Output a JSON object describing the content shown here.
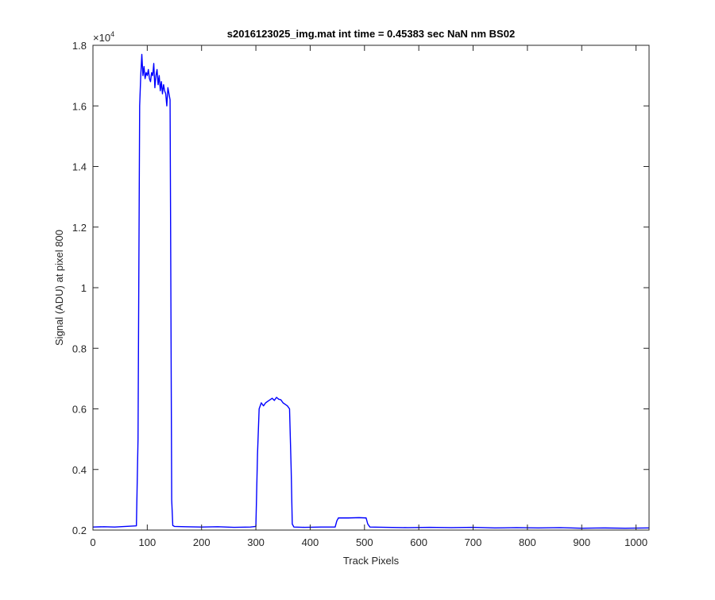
{
  "chart_data": {
    "type": "line",
    "title": "s2016123025_img.mat int time = 0.45383 sec  NaN nm BS02",
    "xlabel": "Track Pixels",
    "ylabel": "Signal (ADU) at pixel 800",
    "y_exponent_base": "×10",
    "y_exponent_power": "4",
    "xlim": [
      0,
      1024
    ],
    "ylim": [
      0.2,
      1.8
    ],
    "x_ticks": [
      0,
      100,
      200,
      300,
      400,
      500,
      600,
      700,
      800,
      900,
      1000
    ],
    "x_tick_labels": [
      "0",
      "100",
      "200",
      "300",
      "400",
      "500",
      "600",
      "700",
      "800",
      "900",
      "1000"
    ],
    "y_ticks": [
      0.2,
      0.4,
      0.6,
      0.8,
      1.0,
      1.2,
      1.4,
      1.6,
      1.8
    ],
    "y_tick_labels": [
      "0.2",
      "0.4",
      "0.6",
      "0.8",
      "1",
      "1.2",
      "1.4",
      "1.6",
      "1.8"
    ],
    "grid": false,
    "line_color": "#0000ff",
    "series": [
      {
        "x": [
          0,
          20,
          40,
          60,
          80,
          83,
          86,
          88,
          90,
          92,
          94,
          96,
          98,
          100,
          102,
          104,
          106,
          108,
          110,
          112,
          114,
          116,
          118,
          120,
          122,
          124,
          126,
          128,
          130,
          132,
          134,
          136,
          138,
          140,
          142,
          143,
          145,
          147,
          150,
          170,
          200,
          230,
          260,
          290,
          300,
          303,
          306,
          310,
          314,
          318,
          322,
          326,
          330,
          334,
          338,
          342,
          346,
          350,
          354,
          358,
          362,
          365,
          367,
          370,
          390,
          420,
          446,
          449,
          452,
          470,
          490,
          503,
          506,
          510,
          540,
          580,
          620,
          660,
          700,
          740,
          780,
          820,
          860,
          900,
          940,
          980,
          1024
        ],
        "y": [
          0.21,
          0.211,
          0.21,
          0.212,
          0.214,
          0.5,
          1.6,
          1.7,
          1.77,
          1.7,
          1.73,
          1.69,
          1.71,
          1.7,
          1.72,
          1.69,
          1.68,
          1.71,
          1.7,
          1.74,
          1.66,
          1.7,
          1.72,
          1.67,
          1.7,
          1.65,
          1.68,
          1.64,
          1.67,
          1.65,
          1.64,
          1.6,
          1.66,
          1.64,
          1.62,
          1.2,
          0.3,
          0.215,
          0.212,
          0.211,
          0.21,
          0.211,
          0.209,
          0.21,
          0.212,
          0.45,
          0.6,
          0.62,
          0.61,
          0.62,
          0.625,
          0.63,
          0.635,
          0.628,
          0.638,
          0.632,
          0.63,
          0.62,
          0.615,
          0.61,
          0.6,
          0.4,
          0.22,
          0.21,
          0.209,
          0.21,
          0.21,
          0.23,
          0.24,
          0.24,
          0.241,
          0.24,
          0.22,
          0.21,
          0.209,
          0.208,
          0.209,
          0.208,
          0.209,
          0.207,
          0.208,
          0.207,
          0.208,
          0.206,
          0.207,
          0.206,
          0.207
        ]
      }
    ]
  }
}
